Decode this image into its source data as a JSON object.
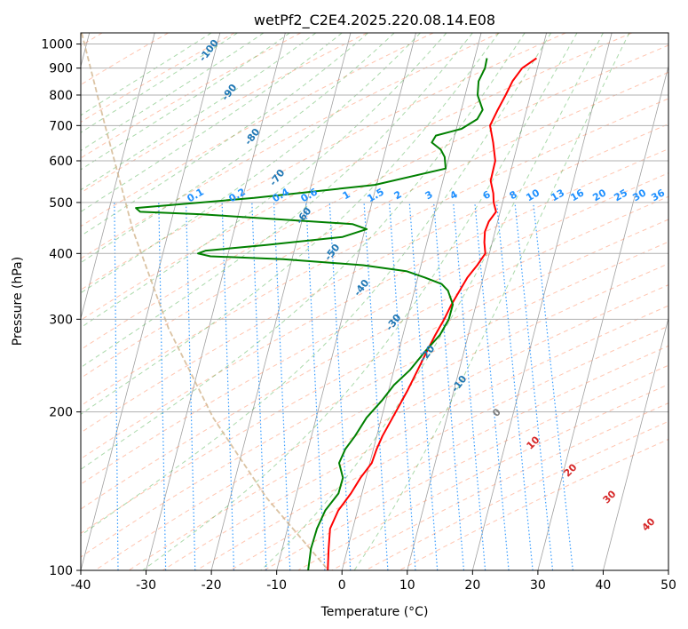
{
  "chart_data": {
    "type": "line",
    "title": "wetPf2_C2E4.2025.220.08.14.E08",
    "xlabel": "Temperature (°C)",
    "ylabel": "Pressure (hPa)",
    "xlim": [
      -40,
      50
    ],
    "ylim": [
      1050,
      100
    ],
    "y_scale": "log",
    "x_ticks": [
      -40,
      -30,
      -20,
      -10,
      0,
      10,
      20,
      30,
      40,
      50
    ],
    "y_ticks": [
      100,
      200,
      300,
      400,
      500,
      600,
      700,
      800,
      900,
      1000
    ],
    "grid": true,
    "colors": {
      "temperature": "#ff0000",
      "dewpoint": "#008000",
      "dry_adiabat": "#ff7f50",
      "moist_adiabat": "#2ca02c",
      "mixing_ratio": "#1e90ff",
      "isotherm": "#808080",
      "lcl_curve": "#d2b48c",
      "dry_label": "#1f77b4",
      "moist_label": "#d62728",
      "zero_label": "#7f7f7f"
    },
    "series": [
      {
        "key": "temperature",
        "points": [
          [
            28.8,
            940
          ],
          [
            26.2,
            900
          ],
          [
            24.2,
            850
          ],
          [
            22.6,
            800
          ],
          [
            20.8,
            750
          ],
          [
            19.0,
            700
          ],
          [
            18.8,
            650
          ],
          [
            18.4,
            600
          ],
          [
            16.9,
            550
          ],
          [
            16.8,
            520
          ],
          [
            16.5,
            500
          ],
          [
            16.5,
            480
          ],
          [
            15.0,
            460
          ],
          [
            14.0,
            440
          ],
          [
            13.5,
            420
          ],
          [
            13.2,
            400
          ],
          [
            11.5,
            380
          ],
          [
            9.5,
            360
          ],
          [
            7.8,
            340
          ],
          [
            6.0,
            320
          ],
          [
            4.3,
            300
          ],
          [
            2.3,
            280
          ],
          [
            0.3,
            260
          ],
          [
            -1.8,
            240
          ],
          [
            -4.1,
            220
          ],
          [
            -6.8,
            200
          ],
          [
            -9.8,
            180
          ],
          [
            -11.2,
            170
          ],
          [
            -12.5,
            160
          ],
          [
            -14.8,
            150
          ],
          [
            -16.9,
            140
          ],
          [
            -19.5,
            130
          ],
          [
            -21.5,
            120
          ],
          [
            -22.5,
            110
          ],
          [
            -23.5,
            100
          ]
        ]
      },
      {
        "key": "dewpoint",
        "points": [
          [
            21.2,
            940
          ],
          [
            20.5,
            900
          ],
          [
            19.0,
            850
          ],
          [
            18.3,
            800
          ],
          [
            18.5,
            750
          ],
          [
            17.3,
            720
          ],
          [
            14.5,
            690
          ],
          [
            10.3,
            670
          ],
          [
            9.4,
            650
          ],
          [
            10.5,
            630
          ],
          [
            10.8,
            610
          ],
          [
            10.5,
            580
          ],
          [
            -1.0,
            540
          ],
          [
            -20.0,
            510
          ],
          [
            -38.5,
            488
          ],
          [
            -38.0,
            480
          ],
          [
            -29.0,
            475
          ],
          [
            -6.0,
            455
          ],
          [
            -4.0,
            445
          ],
          [
            -8.0,
            430
          ],
          [
            -20.0,
            415
          ],
          [
            -29.5,
            405
          ],
          [
            -30.8,
            400
          ],
          [
            -29.0,
            395
          ],
          [
            -18.0,
            390
          ],
          [
            -6.0,
            380
          ],
          [
            0.5,
            370
          ],
          [
            3.0,
            360
          ],
          [
            5.3,
            350
          ],
          [
            6.0,
            340
          ],
          [
            6.2,
            320
          ],
          [
            5.0,
            300
          ],
          [
            3.0,
            280
          ],
          [
            0.0,
            260
          ],
          [
            -3.0,
            240
          ],
          [
            -6.0,
            225
          ],
          [
            -8.5,
            210
          ],
          [
            -11.5,
            195
          ],
          [
            -14.0,
            180
          ],
          [
            -16.0,
            170
          ],
          [
            -17.5,
            160
          ],
          [
            -17.5,
            150
          ],
          [
            -18.8,
            140
          ],
          [
            -21.5,
            130
          ],
          [
            -23.5,
            120
          ],
          [
            -25.2,
            110
          ],
          [
            -26.5,
            100
          ]
        ]
      }
    ],
    "dry_adiabat_labels": [
      "-100",
      "-90",
      "-80",
      "-70",
      "-60",
      "-50",
      "-40",
      "-30",
      "-20",
      "-10"
    ],
    "moist_adiabat_labels": [
      "0",
      "10",
      "20",
      "30",
      "40"
    ],
    "mixing_ratio_labels": [
      "0.1",
      "0.2",
      "0.4",
      "0.6",
      "1",
      "1.5",
      "2",
      "3",
      "4",
      "6",
      "8",
      "10",
      "13",
      "16",
      "20",
      "25",
      "30",
      "36"
    ]
  }
}
